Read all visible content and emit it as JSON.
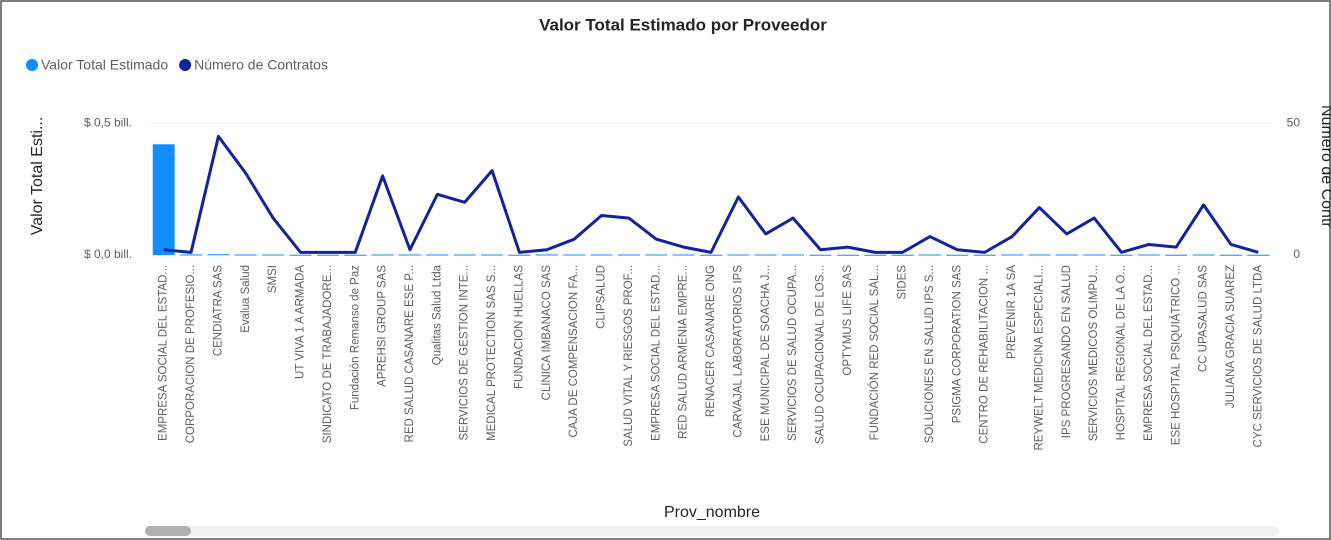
{
  "chart_data": {
    "type": "combo",
    "title": "Valor Total Estimado por Proveedor",
    "x_label": "Prov_nombre",
    "y_label": "Valor Total Esti...",
    "y2_label": "Número de Contr",
    "categories": [
      "EMPRESA SOCIAL DEL ESTAD...",
      "CORPORACION DE PROFESIO...",
      "CENDIATRA SAS",
      "Evalua Salud",
      "SMSI",
      "UT VIVA 1 A ARMADA",
      "SINDICATO DE TRABAJADORE...",
      "Fundación Remanso de Paz",
      "APREHSI GROUP SAS",
      "RED SALUD CASANARE ESE P...",
      "Qualitas Salud Ltda",
      "SERVICIOS DE GESTION INTE...",
      "MEDICAL PROTECTION SAS S...",
      "FUNDACION HUELLAS",
      "CLINICA IMBANACO SAS",
      "CAJA DE COMPENSACION FA...",
      "CLIPSALUD",
      "SALUD VITAL Y RIESGOS PROF...",
      "EMPRESA SOCIAL DEL ESTAD...",
      "RED SALUD ARMENIA EMPRE...",
      "RENACER CASANARE ONG",
      "CARVAJAL LABORATORIOS IPS",
      "ESE MUNICIPAL DE SOACHA J...",
      "SERVICIOS DE SALUD OCUPA...",
      "SALUD OCUPACIONAL DE LOS...",
      "OPTYMUS LIFE SAS",
      "FUNDACIÓN RED SOCIAL SAL...",
      "SIDES",
      "SOLUCIONES EN SALUD IPS S...",
      "PSIGMA CORPORATION SAS",
      "CENTRO DE REHABILITACION ...",
      "PREVENIR 1A SA",
      "REYWELT MEDICINA ESPECIALI...",
      "IPS PROGRESANDO EN SALUD",
      "SERVICIOS MEDICOS OLIMPU...",
      "HOSPITAL REGIONAL DE LA O...",
      "EMPRESA SOCIAL DEL ESTAD...",
      "ESE HOSPITAL PSIQUIÁTRICO ...",
      "CC UPASALUD SAS",
      "JULIANA GRACIA SUAREZ",
      "CYC SERVICIOS DE SALUD LTDA"
    ],
    "series": [
      {
        "name": "Valor Total Estimado",
        "color": "#118DFF",
        "kind": "bar",
        "values": [
          0.42,
          0.002,
          0.003,
          0.002,
          0.002,
          0.001,
          0.001,
          0.001,
          0.002,
          0.002,
          0.002,
          0.002,
          0.002,
          0.001,
          0.002,
          0.002,
          0.002,
          0.002,
          0.002,
          0.002,
          0.001,
          0.002,
          0.002,
          0.002,
          0.001,
          0.001,
          0.001,
          0.001,
          0.002,
          0.001,
          0.001,
          0.002,
          0.002,
          0.002,
          0.002,
          0.001,
          0.002,
          0.001,
          0.002,
          0.001,
          0.001
        ]
      },
      {
        "name": "Número de Contratos",
        "color": "#12239E",
        "kind": "line",
        "axis": "y2",
        "values": [
          2,
          1,
          45,
          31,
          14,
          1,
          1,
          1,
          30,
          2,
          23,
          20,
          32,
          1,
          2,
          6,
          15,
          14,
          6,
          3,
          1,
          22,
          8,
          14,
          2,
          3,
          1,
          1,
          7,
          2,
          1,
          7,
          18,
          8,
          14,
          1,
          4,
          3,
          19,
          4,
          1
        ]
      }
    ],
    "ylim": [
      0,
      0.55
    ],
    "yticks": [
      {
        "value": 0,
        "label": "$ 0,0 bill."
      },
      {
        "value": 0.5,
        "label": "$ 0,5 bill."
      }
    ],
    "y2lim": [
      0,
      55
    ],
    "y2ticks": [
      0,
      50
    ],
    "grid": true
  }
}
